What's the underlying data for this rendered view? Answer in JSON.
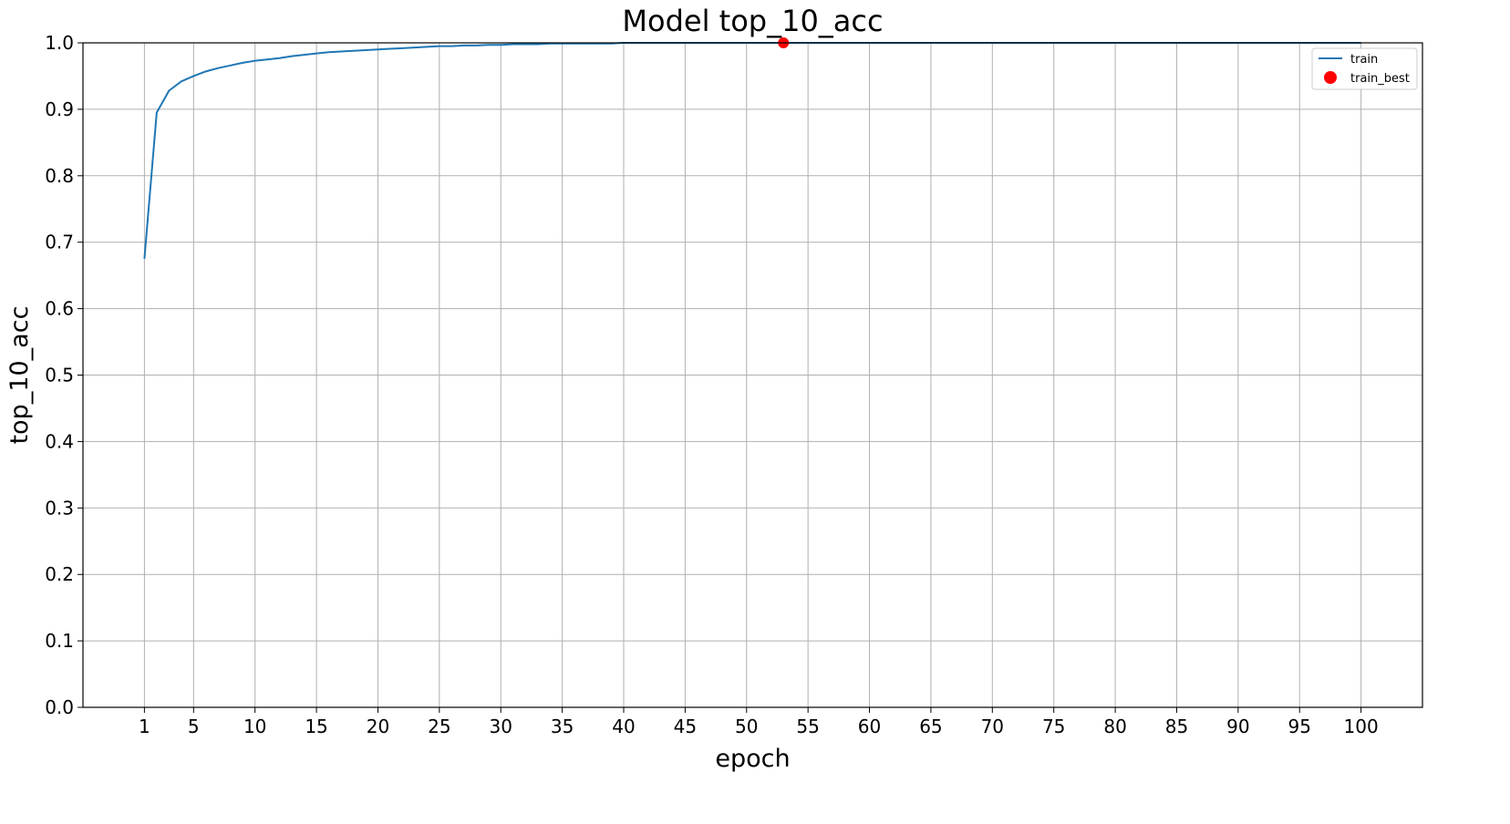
{
  "chart_data": {
    "type": "line",
    "title": "Model top_10_acc",
    "xlabel": "epoch",
    "ylabel": "top_10_acc",
    "xlim": [
      -4,
      105
    ],
    "ylim": [
      0.0,
      1.0
    ],
    "xticks": [
      1,
      5,
      10,
      15,
      20,
      25,
      30,
      35,
      40,
      45,
      50,
      55,
      60,
      65,
      70,
      75,
      80,
      85,
      90,
      95,
      100
    ],
    "yticks": [
      0.0,
      0.1,
      0.2,
      0.3,
      0.4,
      0.5,
      0.6,
      0.7,
      0.8,
      0.9,
      1.0
    ],
    "ytick_labels": [
      "0.0",
      "0.1",
      "0.2",
      "0.3",
      "0.4",
      "0.5",
      "0.6",
      "0.7",
      "0.8",
      "0.9",
      "1.0"
    ],
    "grid": true,
    "legend_position": "top-right",
    "series": [
      {
        "name": "train",
        "kind": "line",
        "color": "#1f77b4",
        "x": [
          1,
          2,
          3,
          4,
          5,
          6,
          7,
          8,
          9,
          10,
          11,
          12,
          13,
          14,
          15,
          16,
          17,
          18,
          19,
          20,
          21,
          22,
          23,
          24,
          25,
          26,
          27,
          28,
          29,
          30,
          31,
          32,
          33,
          34,
          35,
          36,
          37,
          38,
          39,
          40,
          41,
          42,
          43,
          44,
          45,
          46,
          47,
          48,
          49,
          50,
          51,
          52,
          53,
          54,
          55,
          56,
          57,
          58,
          59,
          60,
          61,
          62,
          63,
          64,
          65,
          66,
          67,
          68,
          69,
          70,
          71,
          72,
          73,
          74,
          75,
          76,
          77,
          78,
          79,
          80,
          81,
          82,
          83,
          84,
          85,
          86,
          87,
          88,
          89,
          90,
          91,
          92,
          93,
          94,
          95,
          96,
          97,
          98,
          99,
          100
        ],
        "y": [
          0.675,
          0.895,
          0.928,
          0.942,
          0.95,
          0.957,
          0.962,
          0.966,
          0.97,
          0.973,
          0.975,
          0.977,
          0.98,
          0.982,
          0.984,
          0.986,
          0.987,
          0.988,
          0.989,
          0.99,
          0.991,
          0.992,
          0.993,
          0.994,
          0.995,
          0.995,
          0.996,
          0.996,
          0.997,
          0.997,
          0.998,
          0.998,
          0.998,
          0.999,
          0.999,
          0.999,
          0.999,
          0.999,
          0.999,
          1.0,
          1.0,
          1.0,
          1.0,
          1.0,
          1.0,
          1.0,
          1.0,
          1.0,
          1.0,
          1.0,
          1.0,
          1.0,
          1.0,
          1.0,
          1.0,
          1.0,
          1.0,
          1.0,
          1.0,
          1.0,
          1.0,
          1.0,
          1.0,
          1.0,
          1.0,
          1.0,
          1.0,
          1.0,
          1.0,
          1.0,
          1.0,
          1.0,
          1.0,
          1.0,
          1.0,
          1.0,
          1.0,
          1.0,
          1.0,
          1.0,
          1.0,
          1.0,
          1.0,
          1.0,
          1.0,
          1.0,
          1.0,
          1.0,
          1.0,
          1.0,
          1.0,
          1.0,
          1.0,
          1.0,
          1.0,
          1.0,
          1.0,
          1.0,
          1.0,
          1.0
        ]
      },
      {
        "name": "train_best",
        "kind": "scatter",
        "color": "#ff0000",
        "x": [
          53
        ],
        "y": [
          1.0
        ]
      }
    ]
  }
}
